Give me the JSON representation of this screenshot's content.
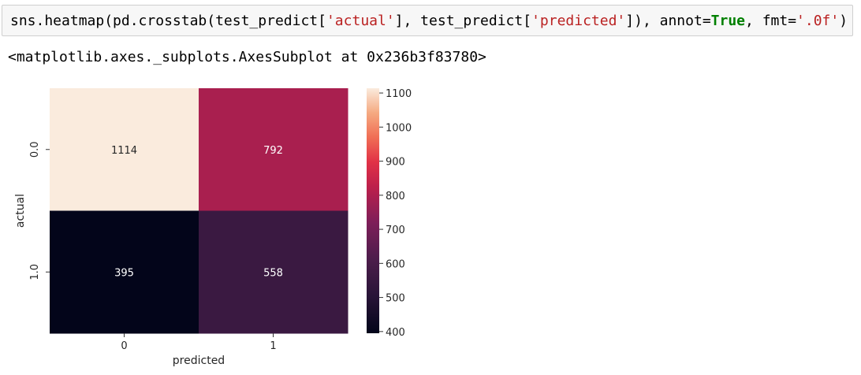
{
  "cell": {
    "code_parts": [
      {
        "text": "sns.heatmap(pd.crosstab(test_predict[",
        "cls": ""
      },
      {
        "text": "'actual'",
        "cls": "str"
      },
      {
        "text": "], test_predict[",
        "cls": ""
      },
      {
        "text": "'predicted'",
        "cls": "str"
      },
      {
        "text": "]), annot=",
        "cls": ""
      },
      {
        "text": "True",
        "cls": "kw"
      },
      {
        "text": ", fmt=",
        "cls": ""
      },
      {
        "text": "'.0f'",
        "cls": "str"
      },
      {
        "text": ")",
        "cls": ""
      }
    ]
  },
  "output": {
    "repr": "<matplotlib.axes._subplots.AxesSubplot at 0x236b3f83780>"
  },
  "colors": {
    "cell_bg": "#f7f7f7",
    "string": "#ba2121",
    "keyword": "#008000"
  },
  "chart_data": {
    "type": "heatmap",
    "x_categories": [
      "0",
      "1"
    ],
    "y_categories": [
      "0.0",
      "1.0"
    ],
    "values": [
      [
        1114,
        792
      ],
      [
        395,
        558
      ]
    ],
    "annotations": [
      [
        "1114",
        "792"
      ],
      [
        "395",
        "558"
      ]
    ],
    "xlabel": "predicted",
    "ylabel": "actual",
    "colormap": "rocket",
    "vmin": 395,
    "vmax": 1114,
    "colorbar": {
      "ticks": [
        400,
        500,
        600,
        700,
        800,
        900,
        1000,
        1100
      ]
    }
  }
}
